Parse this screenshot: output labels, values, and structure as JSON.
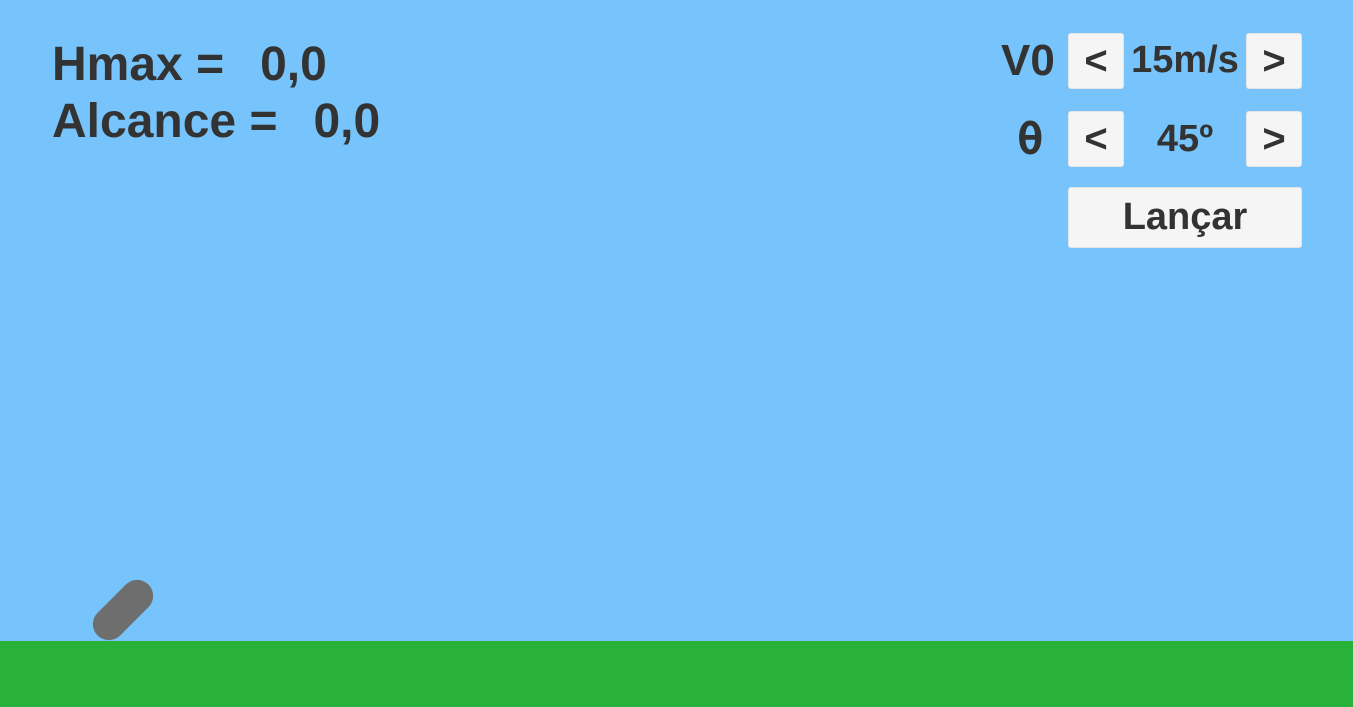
{
  "stats": {
    "hmax_label": "Hmax =",
    "hmax_value": "0,0",
    "alcance_label": "Alcance =",
    "alcance_value": "0,0"
  },
  "controls": {
    "velocity": {
      "label": "V0",
      "decrease": "<",
      "value": "15m/s",
      "increase": ">"
    },
    "angle": {
      "label": "θ",
      "decrease": "<",
      "value": "45º",
      "increase": ">"
    },
    "launch_label": "Lançar"
  },
  "colors": {
    "sky": "#76c4fb",
    "ground": "#28b23a",
    "cannon": "#6e6e6e",
    "text": "#333333",
    "button": "#f5f5f5"
  }
}
